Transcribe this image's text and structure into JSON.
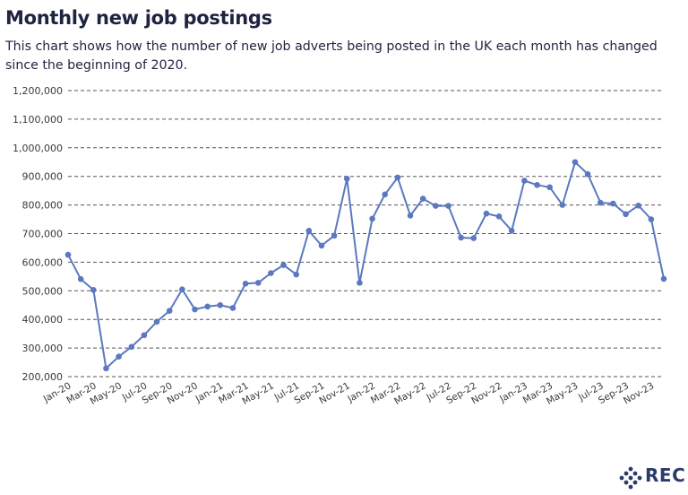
{
  "header": {
    "title": "Monthly new job postings",
    "subtitle": "This chart shows how the number of new job adverts being posted in the UK each month has changed since the beginning of 2020."
  },
  "brand": {
    "logo_text": "REC",
    "logo_color": "#2b3a6b"
  },
  "chart_data": {
    "type": "line",
    "title": "Monthly new job postings",
    "xlabel": "",
    "ylabel": "",
    "ylim": [
      200000,
      1200000
    ],
    "yticks": [
      200000,
      300000,
      400000,
      500000,
      600000,
      700000,
      800000,
      900000,
      1000000,
      1100000,
      1200000
    ],
    "ytick_labels": [
      "200,000",
      "300,000",
      "400,000",
      "500,000",
      "600,000",
      "700,000",
      "800,000",
      "900,000",
      "1,000,000",
      "1,100,000",
      "1,200,000"
    ],
    "grid": true,
    "line_color": "#5b78c0",
    "categories": [
      "Jan-20",
      "Feb-20",
      "Mar-20",
      "Apr-20",
      "May-20",
      "Jun-20",
      "Jul-20",
      "Aug-20",
      "Sep-20",
      "Oct-20",
      "Nov-20",
      "Dec-20",
      "Jan-21",
      "Feb-21",
      "Mar-21",
      "Apr-21",
      "May-21",
      "Jun-21",
      "Jul-21",
      "Aug-21",
      "Sep-21",
      "Oct-21",
      "Nov-21",
      "Dec-21",
      "Jan-22",
      "Feb-22",
      "Mar-22",
      "Apr-22",
      "May-22",
      "Jun-22",
      "Jul-22",
      "Aug-22",
      "Sep-22",
      "Oct-22",
      "Nov-22",
      "Dec-22",
      "Jan-23",
      "Feb-23",
      "Mar-23",
      "Apr-23",
      "May-23",
      "Jun-23",
      "Jul-23",
      "Aug-23",
      "Sep-23",
      "Oct-23",
      "Nov-23",
      "Dec-23"
    ],
    "tick_labels": [
      "Jan-20",
      "Mar-20",
      "May-20",
      "Jul-20",
      "Sep-20",
      "Nov-20",
      "Jan-21",
      "Mar-21",
      "May-21",
      "Jul-21",
      "Sep-21",
      "Nov-21",
      "Jan-22",
      "Mar-22",
      "May-22",
      "Jul-22",
      "Sep-22",
      "Nov-22",
      "Jan-23",
      "Mar-23",
      "May-23",
      "Jul-23",
      "Sep-23",
      "Nov-23"
    ],
    "series": [
      {
        "values": [
          626000,
          541000,
          503000,
          229000,
          270000,
          304000,
          345000,
          392000,
          430000,
          505000,
          435000,
          445000,
          450000,
          440000,
          525000,
          528000,
          562000,
          590000,
          557000,
          710000,
          658000,
          693000,
          892000,
          528000,
          752000,
          837000,
          896000,
          763000,
          822000,
          797000,
          797000,
          686000,
          684000,
          770000,
          760000,
          710000,
          885000,
          870000,
          862000,
          800000,
          950000,
          908000,
          808000,
          805000,
          768000,
          798000,
          750000,
          542000
        ]
      }
    ]
  }
}
